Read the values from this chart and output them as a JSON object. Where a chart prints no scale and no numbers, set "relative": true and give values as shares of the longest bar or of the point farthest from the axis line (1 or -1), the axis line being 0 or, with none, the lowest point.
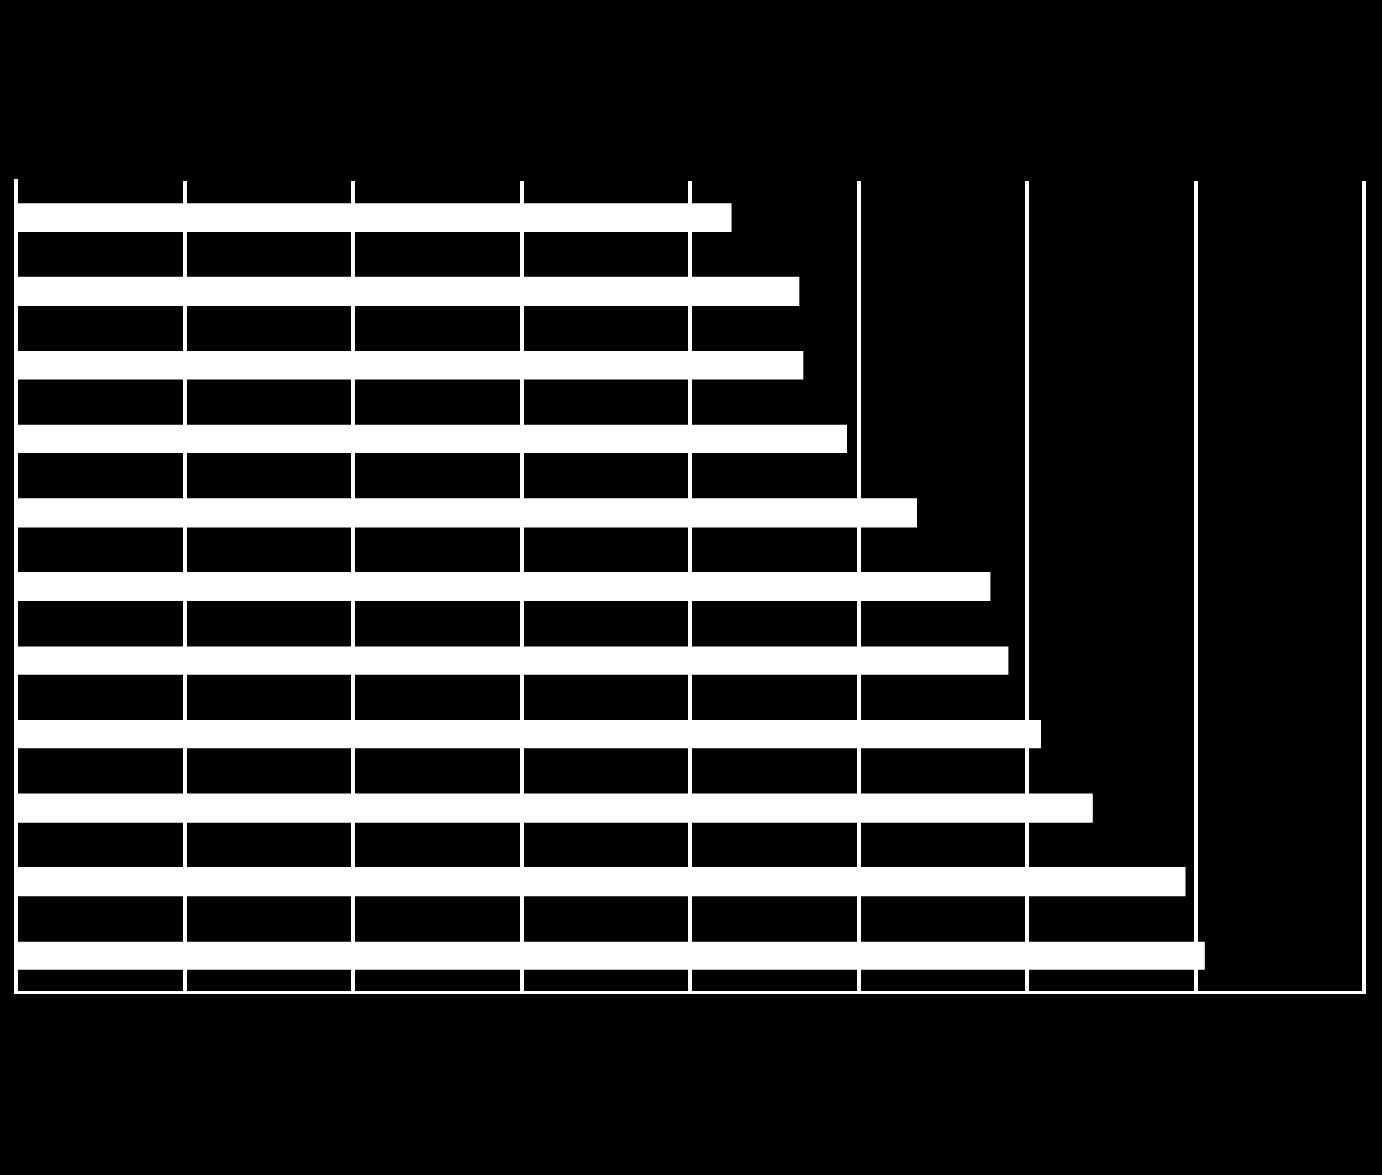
{
  "chart_data": {
    "type": "bar",
    "orientation": "horizontal",
    "relative": true,
    "grid": "x",
    "legend": false,
    "categories": [
      null,
      null,
      null,
      null,
      null,
      null,
      null,
      null,
      null,
      null,
      null
    ],
    "values": [
      0.602,
      0.659,
      0.662,
      0.699,
      0.758,
      0.82,
      0.835,
      0.862,
      0.906,
      0.984,
      1
    ],
    "color": "#ffffff"
  }
}
